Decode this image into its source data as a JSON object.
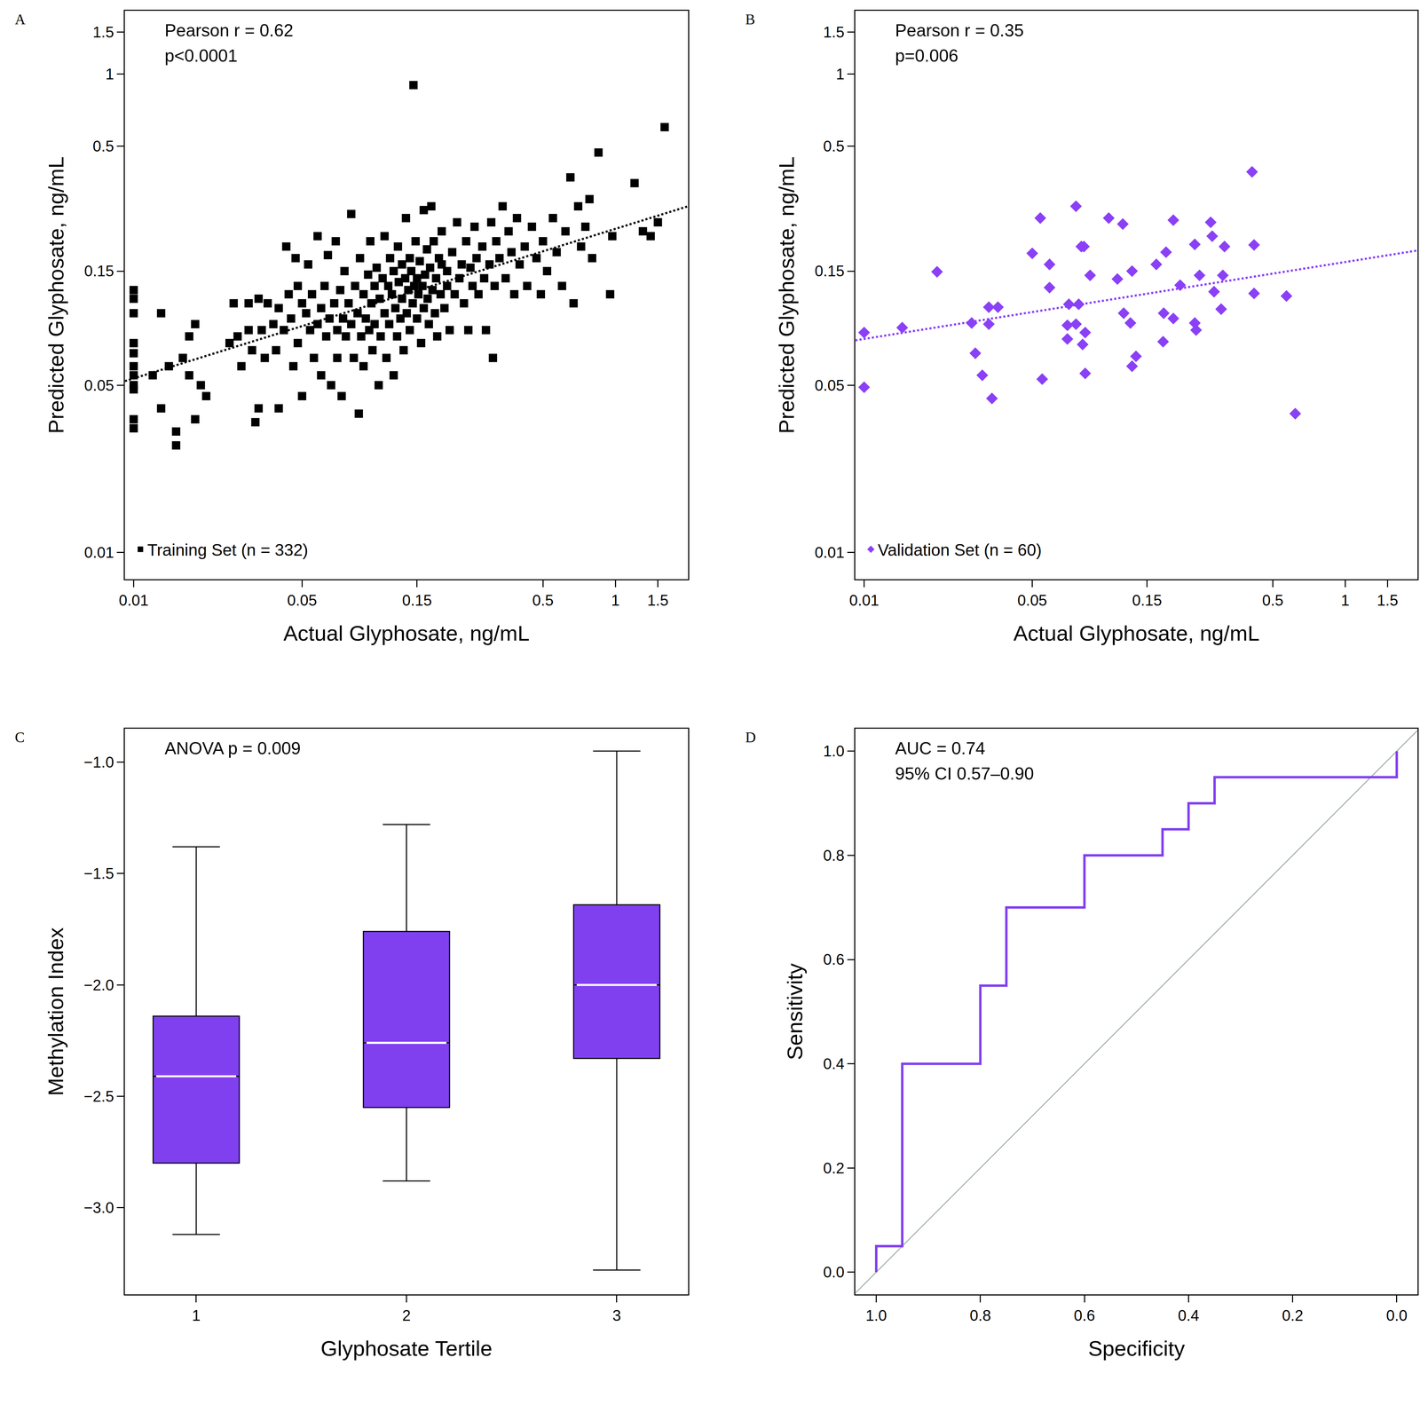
{
  "chart_data": [
    {
      "label": "A",
      "type": "scatter",
      "log": true,
      "grid": false,
      "legend": "bottom left",
      "xlim": [
        0.0092,
        2.0
      ],
      "ylim": [
        0.0077,
        1.84
      ],
      "xticks": [
        0.01,
        0.05,
        0.15,
        0.5,
        1,
        1.5
      ],
      "yticks": [
        0.01,
        0.05,
        0.15,
        0.5,
        1,
        1.5
      ],
      "x_label": "Actual Glyphosate, ng/mL",
      "y_label": "Predicted Glyphosate, ng/mL",
      "annotations": [
        "Pearson r = 0.62",
        "p<0.0001"
      ],
      "series": [
        {
          "name": "Training Set (n = 332)",
          "color": "#000000",
          "marker": "square",
          "x": [
            0.01,
            0.01,
            0.01,
            0.01,
            0.01,
            0.01,
            0.01,
            0.01,
            0.01,
            0.01,
            0.01,
            0.012,
            0.013,
            0.013,
            0.014,
            0.015,
            0.015,
            0.016,
            0.017,
            0.017,
            0.018,
            0.018,
            0.019,
            0.02,
            0.025,
            0.026,
            0.027,
            0.028,
            0.03,
            0.03,
            0.031,
            0.032,
            0.033,
            0.033,
            0.034,
            0.035,
            0.036,
            0.038,
            0.039,
            0.04,
            0.04,
            0.042,
            0.043,
            0.044,
            0.045,
            0.046,
            0.047,
            0.048,
            0.048,
            0.05,
            0.05,
            0.052,
            0.053,
            0.054,
            0.055,
            0.056,
            0.058,
            0.058,
            0.06,
            0.06,
            0.062,
            0.063,
            0.064,
            0.065,
            0.066,
            0.068,
            0.069,
            0.07,
            0.07,
            0.072,
            0.073,
            0.074,
            0.075,
            0.076,
            0.078,
            0.08,
            0.08,
            0.082,
            0.083,
            0.085,
            0.086,
            0.087,
            0.088,
            0.09,
            0.09,
            0.092,
            0.094,
            0.095,
            0.096,
            0.097,
            0.098,
            0.1,
            0.1,
            0.102,
            0.104,
            0.105,
            0.106,
            0.108,
            0.11,
            0.11,
            0.112,
            0.114,
            0.115,
            0.116,
            0.118,
            0.12,
            0.12,
            0.122,
            0.124,
            0.125,
            0.126,
            0.128,
            0.13,
            0.13,
            0.132,
            0.134,
            0.135,
            0.136,
            0.138,
            0.14,
            0.14,
            0.142,
            0.144,
            0.145,
            0.146,
            0.148,
            0.15,
            0.15,
            0.152,
            0.154,
            0.156,
            0.158,
            0.16,
            0.16,
            0.162,
            0.165,
            0.166,
            0.168,
            0.17,
            0.172,
            0.174,
            0.176,
            0.178,
            0.18,
            0.182,
            0.185,
            0.188,
            0.19,
            0.19,
            0.195,
            0.2,
            0.2,
            0.205,
            0.21,
            0.215,
            0.22,
            0.225,
            0.23,
            0.235,
            0.24,
            0.245,
            0.25,
            0.255,
            0.26,
            0.265,
            0.27,
            0.28,
            0.285,
            0.29,
            0.3,
            0.305,
            0.31,
            0.315,
            0.32,
            0.33,
            0.34,
            0.35,
            0.36,
            0.37,
            0.38,
            0.39,
            0.4,
            0.42,
            0.43,
            0.45,
            0.47,
            0.49,
            0.5,
            0.52,
            0.55,
            0.57,
            0.6,
            0.62,
            0.65,
            0.67,
            0.7,
            0.72,
            0.75,
            0.78,
            0.8,
            0.85,
            0.95,
            0.97,
            1.2,
            1.3,
            1.4,
            1.5,
            1.6
          ],
          "values": [
            0.125,
            0.115,
            0.1,
            0.075,
            0.068,
            0.06,
            0.055,
            0.05,
            0.048,
            0.036,
            0.033,
            0.055,
            0.1,
            0.04,
            0.06,
            0.032,
            0.028,
            0.065,
            0.08,
            0.055,
            0.09,
            0.036,
            0.05,
            0.045,
            0.075,
            0.11,
            0.08,
            0.06,
            0.11,
            0.085,
            0.07,
            0.035,
            0.04,
            0.115,
            0.085,
            0.065,
            0.11,
            0.09,
            0.07,
            0.105,
            0.04,
            0.085,
            0.19,
            0.12,
            0.095,
            0.06,
            0.17,
            0.13,
            0.075,
            0.11,
            0.045,
            0.1,
            0.16,
            0.085,
            0.12,
            0.065,
            0.21,
            0.09,
            0.105,
            0.055,
            0.13,
            0.08,
            0.175,
            0.095,
            0.05,
            0.11,
            0.2,
            0.085,
            0.065,
            0.125,
            0.045,
            0.095,
            0.15,
            0.08,
            0.11,
            0.26,
            0.09,
            0.065,
            0.13,
            0.1,
            0.038,
            0.17,
            0.08,
            0.12,
            0.06,
            0.095,
            0.145,
            0.085,
            0.2,
            0.11,
            0.07,
            0.13,
            0.09,
            0.155,
            0.05,
            0.115,
            0.08,
            0.14,
            0.21,
            0.1,
            0.065,
            0.13,
            0.09,
            0.17,
            0.12,
            0.055,
            0.15,
            0.105,
            0.08,
            0.19,
            0.135,
            0.095,
            0.16,
            0.115,
            0.07,
            0.14,
            0.25,
            0.1,
            0.125,
            0.085,
            0.17,
            0.15,
            0.11,
            0.9,
            0.13,
            0.2,
            0.095,
            0.14,
            0.12,
            0.165,
            0.075,
            0.13,
            0.27,
            0.105,
            0.145,
            0.185,
            0.115,
            0.09,
            0.155,
            0.28,
            0.125,
            0.2,
            0.1,
            0.14,
            0.08,
            0.17,
            0.12,
            0.16,
            0.22,
            0.105,
            0.15,
            0.13,
            0.085,
            0.18,
            0.12,
            0.24,
            0.14,
            0.16,
            0.11,
            0.2,
            0.085,
            0.155,
            0.13,
            0.23,
            0.17,
            0.12,
            0.19,
            0.14,
            0.085,
            0.16,
            0.24,
            0.065,
            0.13,
            0.2,
            0.17,
            0.28,
            0.14,
            0.22,
            0.18,
            0.12,
            0.25,
            0.16,
            0.19,
            0.13,
            0.23,
            0.17,
            0.12,
            0.2,
            0.15,
            0.25,
            0.18,
            0.13,
            0.22,
            0.37,
            0.11,
            0.28,
            0.19,
            0.23,
            0.3,
            0.17,
            0.47,
            0.12,
            0.21,
            0.35,
            0.22,
            0.21,
            0.24,
            0.6
          ]
        },
        {
          "type": "line",
          "line_style": "dotted",
          "color": "#000000",
          "x": [
            0.0092,
            2.0
          ],
          "values": [
            0.052,
            0.28
          ]
        }
      ]
    },
    {
      "label": "B",
      "type": "scatter",
      "log": true,
      "grid": false,
      "legend": "bottom left",
      "xlim": [
        0.0092,
        2.0
      ],
      "ylim": [
        0.0077,
        1.84
      ],
      "xticks": [
        0.01,
        0.05,
        0.15,
        0.5,
        1,
        1.5
      ],
      "yticks": [
        0.01,
        0.05,
        0.15,
        0.5,
        1,
        1.5
      ],
      "x_label": "Actual Glyphosate, ng/mL",
      "y_label": "Predicted Glyphosate, ng/mL",
      "annotations": [
        "Pearson r = 0.35",
        "p=0.006"
      ],
      "series": [
        {
          "name": "Validation Set (n = 60)",
          "color": "#8a40f5",
          "marker": "diamond",
          "x": [
            0.01,
            0.01,
            0.0144,
            0.0201,
            0.028,
            0.029,
            0.031,
            0.033,
            0.033,
            0.034,
            0.036,
            0.05,
            0.054,
            0.055,
            0.059,
            0.059,
            0.07,
            0.07,
            0.071,
            0.076,
            0.076,
            0.078,
            0.08,
            0.082,
            0.081,
            0.083,
            0.083,
            0.087,
            0.104,
            0.113,
            0.119,
            0.12,
            0.128,
            0.13,
            0.13,
            0.135,
            0.164,
            0.18,
            0.175,
            0.176,
            0.193,
            0.193,
            0.206,
            0.237,
            0.237,
            0.24,
            0.248,
            0.276,
            0.28,
            0.285,
            0.305,
            0.31,
            0.315,
            0.41,
            0.418,
            0.418,
            0.57,
            0.62
          ],
          "values": [
            0.083,
            0.049,
            0.087,
            0.149,
            0.091,
            0.068,
            0.055,
            0.106,
            0.09,
            0.044,
            0.106,
            0.178,
            0.25,
            0.053,
            0.16,
            0.128,
            0.089,
            0.078,
            0.109,
            0.28,
            0.09,
            0.109,
            0.19,
            0.19,
            0.074,
            0.083,
            0.056,
            0.144,
            0.25,
            0.139,
            0.236,
            0.1,
            0.091,
            0.15,
            0.06,
            0.066,
            0.16,
            0.18,
            0.076,
            0.1,
            0.095,
            0.245,
            0.131,
            0.194,
            0.091,
            0.085,
            0.144,
            0.24,
            0.21,
            0.123,
            0.104,
            0.144,
            0.19,
            0.39,
            0.193,
            0.121,
            0.118,
            0.038
          ]
        },
        {
          "type": "line",
          "line_style": "dotted",
          "color": "#8a40f5",
          "x": [
            0.0092,
            2.0
          ],
          "values": [
            0.077,
            0.183
          ]
        }
      ]
    },
    {
      "label": "C",
      "type": "box",
      "grid": false,
      "categories": [
        "1",
        "2",
        "3"
      ],
      "ylim": [
        -3.39,
        -0.85
      ],
      "yticks": [
        {
          "value": -3.0,
          "label": "−3.0"
        },
        {
          "value": -2.5,
          "label": "−2.5"
        },
        {
          "value": -2.0,
          "label": "−2.0"
        },
        {
          "value": -1.5,
          "label": "−1.5"
        },
        {
          "value": -1.0,
          "label": "−1.0"
        }
      ],
      "x_label": "Glyphosate Tertile",
      "y_label": "Methylation Index",
      "annotations": [
        "ANOVA p = 0.009"
      ],
      "series": [
        {
          "color": "#8040f0",
          "lower_whisker": [
            -3.12,
            -2.88,
            -3.28
          ],
          "q1": [
            -2.8,
            -2.55,
            -2.33
          ],
          "median": [
            -2.41,
            -2.26,
            -2.0
          ],
          "q3": [
            -2.14,
            -1.76,
            -1.64
          ],
          "upper_whisker": [
            -1.38,
            -1.28,
            -0.95
          ]
        }
      ]
    },
    {
      "label": "D",
      "type": "line",
      "grid": false,
      "xlim": [
        1.04,
        -0.04
      ],
      "ylim": [
        -0.043,
        1.043
      ],
      "xticks": [
        {
          "value": 1.0,
          "label": "1.0"
        },
        {
          "value": 0.8,
          "label": "0.8"
        },
        {
          "value": 0.6,
          "label": "0.6"
        },
        {
          "value": 0.4,
          "label": "0.4"
        },
        {
          "value": 0.2,
          "label": "0.2"
        },
        {
          "value": 0.0,
          "label": "0.0"
        }
      ],
      "yticks": [
        {
          "value": 0.0,
          "label": "0.0"
        },
        {
          "value": 0.2,
          "label": "0.2"
        },
        {
          "value": 0.4,
          "label": "0.4"
        },
        {
          "value": 0.6,
          "label": "0.6"
        },
        {
          "value": 0.8,
          "label": "0.8"
        },
        {
          "value": 1.0,
          "label": "1.0"
        }
      ],
      "x_label": "Specificity",
      "y_label": "Sensitivity",
      "annotations": [
        "AUC = 0.74",
        "95% CI 0.57–0.90"
      ],
      "series": [
        {
          "color": "#a3b3ab",
          "line_style": "solid",
          "x": [
            1.04,
            -0.04
          ],
          "values": [
            -0.04,
            1.04
          ]
        },
        {
          "color": "#8040f0",
          "line_style": "solid",
          "x": [
            1.0,
            1.0,
            0.95,
            0.95,
            0.8,
            0.8,
            0.75,
            0.75,
            0.6,
            0.6,
            0.45,
            0.45,
            0.4,
            0.4,
            0.35,
            0.35,
            0.0,
            0.0
          ],
          "values": [
            0.0,
            0.05,
            0.05,
            0.4,
            0.4,
            0.55,
            0.55,
            0.7,
            0.7,
            0.8,
            0.8,
            0.85,
            0.85,
            0.9,
            0.9,
            0.95,
            0.95,
            1.0
          ]
        }
      ]
    }
  ]
}
